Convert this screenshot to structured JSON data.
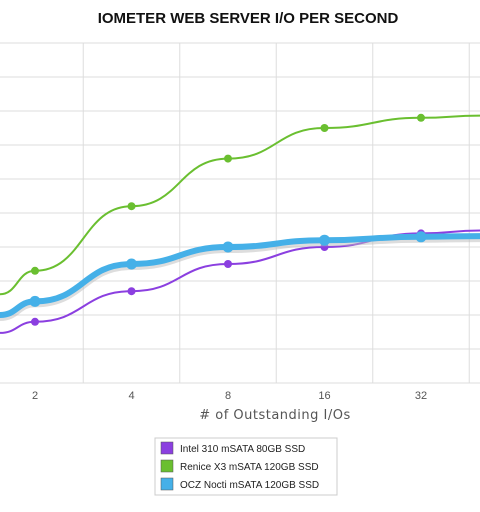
{
  "chart_data": {
    "type": "line",
    "title": "IOMETER WEB SERVER I/O PER SECOND",
    "xlabel": "# of Outstanding I/Os",
    "ylabel": "",
    "x": [
      "2",
      "4",
      "8",
      "16",
      "32"
    ],
    "series": [
      {
        "name": "Intel 310 mSATA 80GB SSD",
        "color": "#8b3fe0",
        "values": [
          1.8,
          2.7,
          3.5,
          4.0,
          4.4
        ]
      },
      {
        "name": "Renice X3 mSATA 120GB SSD",
        "color": "#6abf30",
        "values": [
          3.3,
          5.2,
          6.6,
          7.5,
          7.8
        ]
      },
      {
        "name": "OCZ Nocti mSATA 120GB SSD",
        "color": "#45b0e8",
        "values": [
          2.4,
          3.5,
          4.0,
          4.2,
          4.3
        ]
      }
    ],
    "ylim": [
      0,
      10
    ],
    "grid": true,
    "legend_position": "bottom"
  }
}
